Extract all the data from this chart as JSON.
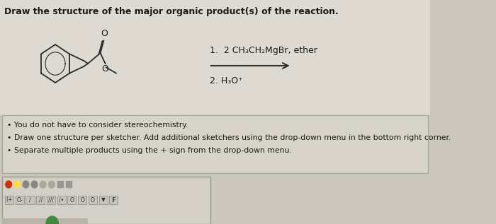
{
  "title": "Draw the structure of the major organic product(s) of the reaction.",
  "title_fontsize": 9.0,
  "bg_color": "#cbc7bc",
  "upper_bg": "#dedad2",
  "box_bg_color": "#d8d4ca",
  "box_border_color": "#aaa89e",
  "reaction_step1": "1.  2 CH₃CH₂MgBr, ether",
  "reaction_step2": "2. H₃O⁺",
  "bullet1": "You do not have to consider stereochemistry.",
  "bullet2": "Draw one structure per sketcher. Add additional sketchers using the drop-down menu in the bottom right corner.",
  "bullet3": "Separate multiple products using the + sign from the drop-down menu.",
  "bullet_fontsize": 7.8,
  "arrow_color": "#333333",
  "text_color": "#1a1a1a",
  "toolbar_bg": "#c0bcb2",
  "sketcher_bg": "#d4d0c8",
  "mol_color": "#2a2a2a",
  "label_color": "#1a1a1a"
}
